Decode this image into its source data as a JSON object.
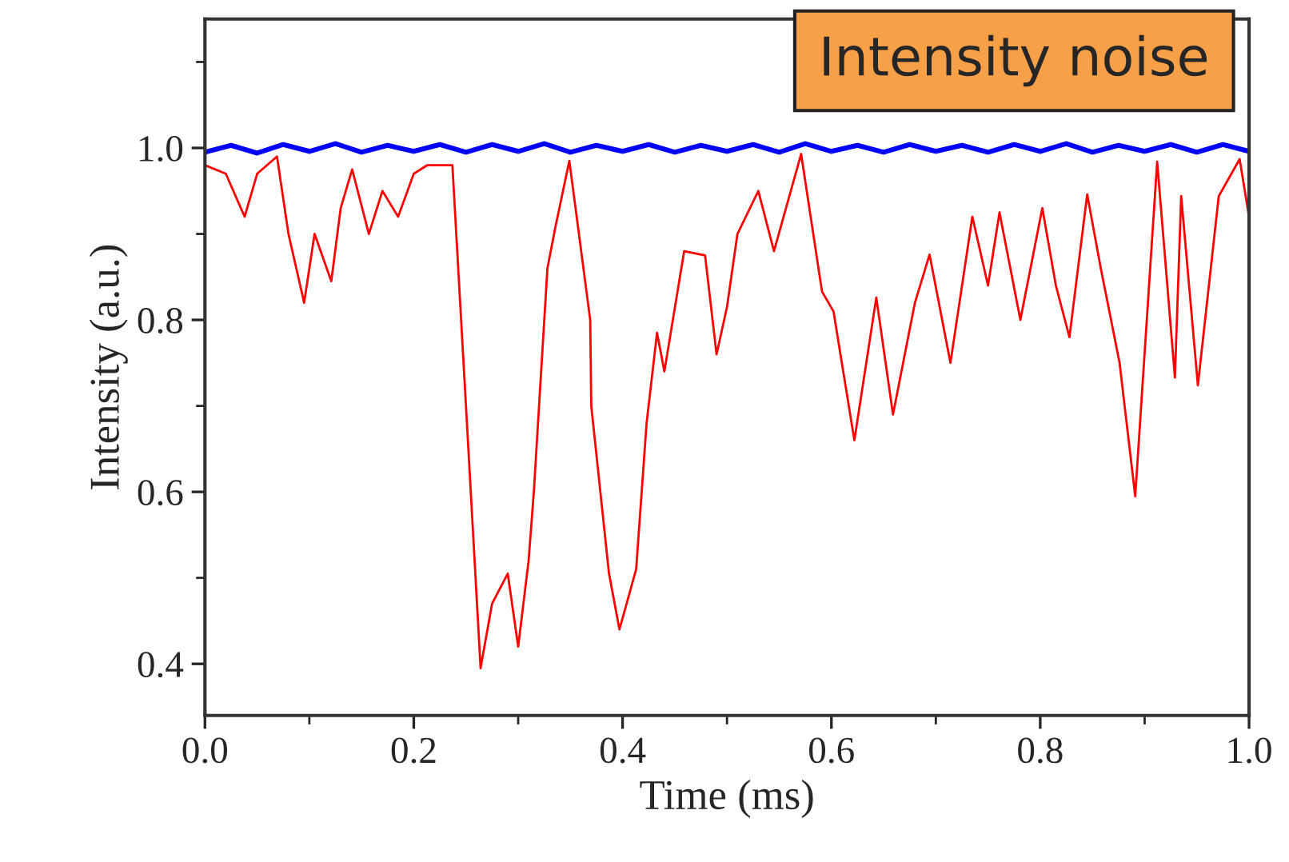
{
  "chart_data": {
    "type": "line",
    "xlabel": "Time (ms)",
    "ylabel": "Intensity (a.u.)",
    "annotations": [
      "Intensity noise"
    ],
    "xlim": [
      0.0,
      1.0
    ],
    "ylim": [
      0.34,
      1.15
    ],
    "xticks": [
      {
        "value": 0.0,
        "label": "0.0"
      },
      0.2,
      0.4,
      0.6,
      0.8,
      {
        "value": 1.0,
        "label": "1.0"
      }
    ],
    "yticks": [
      0.4,
      0.6,
      0.8,
      {
        "value": 1.0,
        "label": "1.0"
      }
    ],
    "series": [
      {
        "color": "#ff0000",
        "x": [
          0.0,
          0.02,
          0.038,
          0.05,
          0.069,
          0.08,
          0.095,
          0.105,
          0.121,
          0.13,
          0.141,
          0.157,
          0.17,
          0.185,
          0.2,
          0.213,
          0.237,
          0.25,
          0.264,
          0.275,
          0.29,
          0.3,
          0.31,
          0.315,
          0.328,
          0.336,
          0.349,
          0.369,
          0.37,
          0.387,
          0.397,
          0.413,
          0.423,
          0.433,
          0.44,
          0.459,
          0.479,
          0.49,
          0.5,
          0.51,
          0.53,
          0.545,
          0.571,
          0.591,
          0.602,
          0.622,
          0.643,
          0.659,
          0.68,
          0.694,
          0.714,
          0.735,
          0.75,
          0.761,
          0.781,
          0.802,
          0.815,
          0.828,
          0.845,
          0.858,
          0.876,
          0.891,
          0.912,
          0.929,
          0.935,
          0.951,
          0.971,
          0.991,
          1.0
        ],
        "values": [
          0.98,
          0.97,
          0.92,
          0.97,
          0.99,
          0.9,
          0.82,
          0.9,
          0.845,
          0.93,
          0.975,
          0.9,
          0.95,
          0.92,
          0.97,
          0.98,
          0.98,
          0.7,
          0.395,
          0.47,
          0.505,
          0.42,
          0.52,
          0.6,
          0.86,
          0.91,
          0.985,
          0.8,
          0.7,
          0.505,
          0.44,
          0.51,
          0.68,
          0.785,
          0.74,
          0.88,
          0.875,
          0.76,
          0.815,
          0.9,
          0.95,
          0.88,
          0.993,
          0.833,
          0.81,
          0.66,
          0.826,
          0.69,
          0.82,
          0.876,
          0.75,
          0.92,
          0.84,
          0.925,
          0.8,
          0.93,
          0.84,
          0.78,
          0.946,
          0.86,
          0.75,
          0.595,
          0.984,
          0.733,
          0.944,
          0.724,
          0.944,
          0.987,
          0.92
        ]
      },
      {
        "color": "#0000ff",
        "x": [
          0.0,
          0.025,
          0.05,
          0.075,
          0.1,
          0.125,
          0.15,
          0.175,
          0.2,
          0.225,
          0.25,
          0.275,
          0.3,
          0.325,
          0.35,
          0.375,
          0.4,
          0.425,
          0.45,
          0.475,
          0.5,
          0.525,
          0.55,
          0.575,
          0.6,
          0.625,
          0.65,
          0.675,
          0.7,
          0.725,
          0.75,
          0.775,
          0.8,
          0.825,
          0.85,
          0.875,
          0.9,
          0.925,
          0.95,
          0.975,
          1.0
        ],
        "values": [
          0.995,
          1.003,
          0.994,
          1.004,
          0.996,
          1.005,
          0.995,
          1.003,
          0.996,
          1.004,
          0.995,
          1.004,
          0.996,
          1.005,
          0.995,
          1.003,
          0.996,
          1.004,
          0.995,
          1.003,
          0.996,
          1.004,
          0.995,
          1.005,
          0.996,
          1.003,
          0.995,
          1.004,
          0.996,
          1.003,
          0.995,
          1.004,
          0.996,
          1.005,
          0.995,
          1.003,
          0.996,
          1.004,
          0.995,
          1.004,
          0.996
        ]
      }
    ]
  }
}
